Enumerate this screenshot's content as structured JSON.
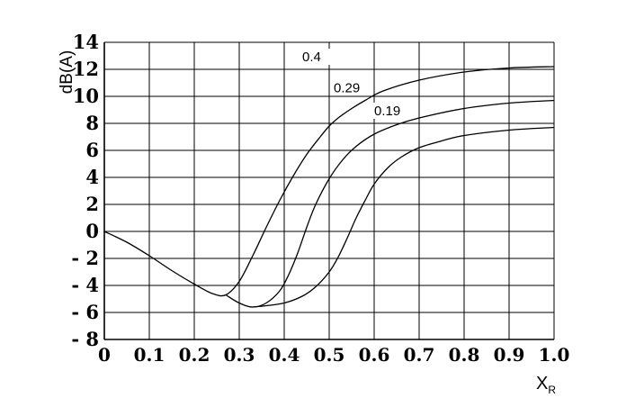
{
  "chart_data": {
    "type": "line",
    "title": "",
    "ylabel": "dB(A)",
    "xlabel": "X",
    "xlabel_subscript": "R",
    "xlim": [
      0,
      1.0
    ],
    "ylim": [
      -8,
      14
    ],
    "grid": true,
    "x_ticks": [
      0,
      0.1,
      0.2,
      0.3,
      0.4,
      0.5,
      0.6,
      0.7,
      0.8,
      0.9,
      1.0
    ],
    "x_tick_labels": [
      "0",
      "0.1",
      "0.2",
      "0.3",
      "0.4",
      "0.5",
      "0.6",
      "0.7",
      "0.8",
      "0.9",
      "1.0"
    ],
    "y_ticks": [
      14,
      12,
      10,
      8,
      6,
      4,
      2,
      0,
      -2,
      -4,
      -6,
      -8
    ],
    "y_tick_labels": [
      "14",
      "12",
      "10",
      "8",
      "6",
      "4",
      "2",
      "0",
      "- 2",
      "- 4",
      "- 6",
      "- 8"
    ],
    "series": [
      {
        "name": "0.4",
        "label_at": [
          0.44,
          12.6
        ],
        "x": [
          0,
          0.05,
          0.1,
          0.15,
          0.2,
          0.24,
          0.27,
          0.3,
          0.33,
          0.36,
          0.39,
          0.42,
          0.45,
          0.48,
          0.5,
          0.52,
          0.55,
          0.58,
          0.62,
          0.7,
          0.8,
          0.9,
          1.0
        ],
        "y": [
          0,
          -0.8,
          -1.8,
          -2.9,
          -3.9,
          -4.6,
          -4.7,
          -3.7,
          -1.8,
          0.3,
          2.3,
          4.1,
          5.7,
          7.0,
          7.8,
          8.4,
          9.1,
          9.7,
          10.4,
          11.2,
          11.8,
          12.1,
          12.2
        ]
      },
      {
        "name": "0.29",
        "label_at": [
          0.51,
          10.3
        ],
        "x": [
          0.27,
          0.3,
          0.33,
          0.36,
          0.39,
          0.41,
          0.43,
          0.45,
          0.47,
          0.5,
          0.53,
          0.56,
          0.6,
          0.65,
          0.7,
          0.8,
          0.9,
          1.0
        ],
        "y": [
          -4.7,
          -5.3,
          -5.6,
          -5.3,
          -4.4,
          -3.2,
          -1.6,
          0.3,
          2.0,
          3.9,
          5.3,
          6.3,
          7.2,
          7.9,
          8.4,
          9.1,
          9.5,
          9.7
        ]
      },
      {
        "name": "0.19",
        "label_at": [
          0.6,
          8.6
        ],
        "x": [
          0.33,
          0.36,
          0.4,
          0.44,
          0.47,
          0.5,
          0.52,
          0.54,
          0.56,
          0.58,
          0.6,
          0.63,
          0.66,
          0.7,
          0.75,
          0.8,
          0.9,
          1.0
        ],
        "y": [
          -5.6,
          -5.5,
          -5.3,
          -4.8,
          -4.1,
          -3.0,
          -1.9,
          -0.5,
          1.0,
          2.3,
          3.5,
          4.7,
          5.5,
          6.2,
          6.7,
          7.1,
          7.5,
          7.7
        ]
      }
    ]
  }
}
